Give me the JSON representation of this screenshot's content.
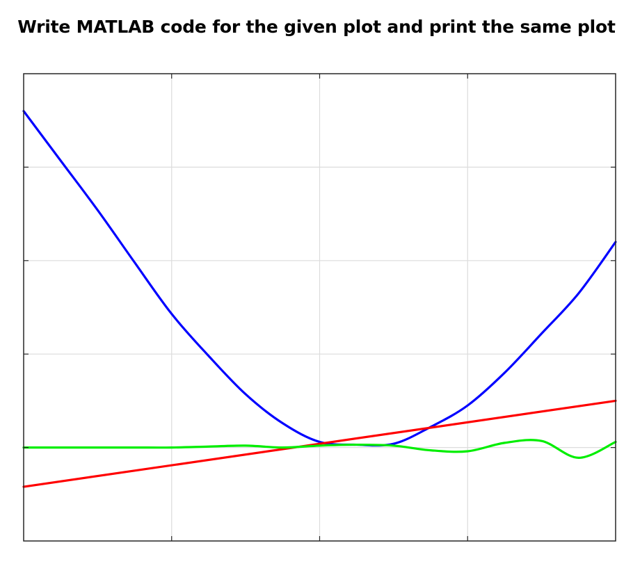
{
  "header": {
    "title": "Write MATLAB code for the given plot and print the same plot"
  },
  "chart_data": {
    "type": "line",
    "title": "",
    "xlabel": "",
    "ylabel": "",
    "xlim": [
      -2,
      2
    ],
    "ylim": [
      -1,
      4
    ],
    "xticks": [
      -2,
      -1,
      0,
      1,
      2
    ],
    "yticks": [
      -1,
      0,
      1,
      2,
      3,
      4
    ],
    "tick_labels_shown": false,
    "grid": true,
    "legend": "none",
    "series": [
      {
        "color": "#0000ff",
        "x": [
          -2.0,
          -1.75,
          -1.5,
          -1.25,
          -1.0,
          -0.75,
          -0.5,
          -0.25,
          0.0,
          0.25,
          0.5,
          0.75,
          1.0,
          1.25,
          1.5,
          1.75,
          2.0
        ],
        "y": [
          3.6,
          3.07,
          2.54,
          1.98,
          1.43,
          0.98,
          0.57,
          0.26,
          0.06,
          0.03,
          0.04,
          0.22,
          0.45,
          0.8,
          1.22,
          1.65,
          2.2
        ]
      },
      {
        "color": "#ff0000",
        "x": [
          -2.0,
          2.0
        ],
        "y": [
          -0.42,
          0.5
        ]
      },
      {
        "color": "#00ee00",
        "x": [
          -2.0,
          -1.75,
          -1.5,
          -1.25,
          -1.0,
          -0.75,
          -0.5,
          -0.25,
          0.0,
          0.25,
          0.5,
          0.75,
          1.0,
          1.25,
          1.5,
          1.75,
          2.0
        ],
        "y": [
          0.0,
          0.0,
          0.0,
          0.0,
          0.0,
          0.01,
          0.02,
          0.0,
          0.02,
          0.03,
          0.02,
          -0.03,
          -0.04,
          0.05,
          0.07,
          -0.11,
          0.06
        ]
      }
    ]
  }
}
